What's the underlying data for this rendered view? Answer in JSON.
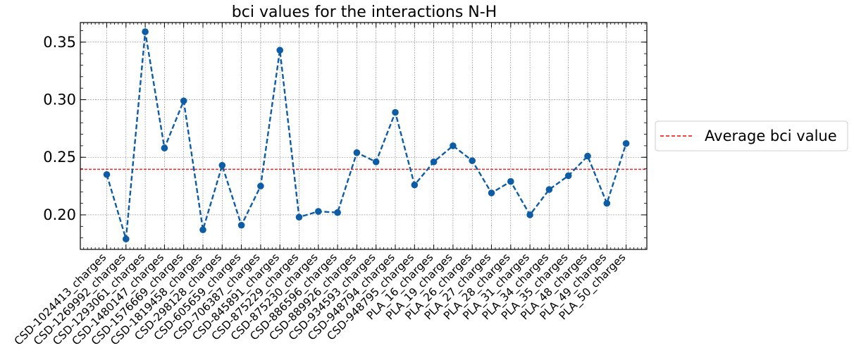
{
  "chart_data": {
    "type": "line",
    "title": "bci values for the interactions N-H",
    "xlabel": "",
    "ylabel": "",
    "ylim": [
      0.17,
      0.367
    ],
    "yticks": [
      0.2,
      0.25,
      0.3,
      0.35
    ],
    "ytick_labels": [
      "0.20",
      "0.25",
      "0.30",
      "0.35"
    ],
    "grid": true,
    "legend_position": "outside-right",
    "categories": [
      "CSD-1024413_charges",
      "CSD-1269992_charges",
      "CSD-1293061_charges",
      "CSD-1480147_charges",
      "CSD-1576669_charges",
      "CSD-1819458_charges",
      "CSD-298128_charges",
      "CSD-605659_charges",
      "CSD-706387_charges",
      "CSD-845891_charges",
      "CSD-875229_charges",
      "CSD-875230_charges",
      "CSD-886596_charges",
      "CSD-889926_charges",
      "CSD-934593_charges",
      "CSD-948794_charges",
      "CSD-948795_charges",
      "PLA_16_charges",
      "PLA_19_charges",
      "PLA_26_charges",
      "PLA_27_charges",
      "PLA_28_charges",
      "PLA_31_charges",
      "PLA_34_charges",
      "PLA_35_charges",
      "PLA_48_charges",
      "PLA_49_charges",
      "PLA_50_charges"
    ],
    "series": [
      {
        "color": "#0c5da5",
        "values": [
          0.235,
          0.179,
          0.359,
          0.258,
          0.299,
          0.187,
          0.243,
          0.191,
          0.225,
          0.343,
          0.198,
          0.203,
          0.202,
          0.254,
          0.246,
          0.289,
          0.226,
          0.246,
          0.26,
          0.247,
          0.219,
          0.229,
          0.2,
          0.222,
          0.234,
          0.251,
          0.21,
          0.262
        ]
      }
    ],
    "reference_line": {
      "name": "Average bci value",
      "value": 0.2396,
      "color": "#ff0000"
    }
  }
}
